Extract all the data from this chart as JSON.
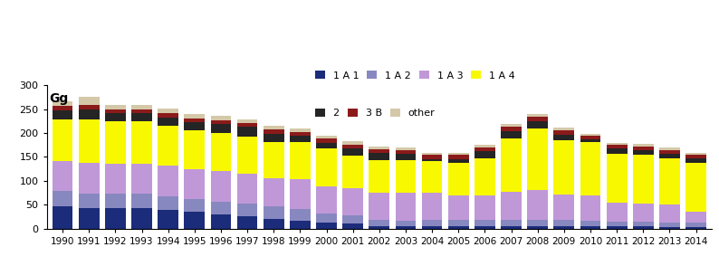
{
  "years": [
    1990,
    1991,
    1992,
    1993,
    1994,
    1995,
    1996,
    1997,
    1998,
    1999,
    2000,
    2001,
    2002,
    2003,
    2004,
    2005,
    2006,
    2007,
    2008,
    2009,
    2010,
    2011,
    2012,
    2013,
    2014
  ],
  "1A1": [
    46,
    44,
    44,
    44,
    40,
    35,
    29,
    26,
    21,
    17,
    12,
    11,
    5,
    5,
    5,
    5,
    5,
    5,
    5,
    5,
    5,
    5,
    5,
    4,
    4
  ],
  "1A2": [
    33,
    30,
    30,
    30,
    28,
    27,
    28,
    27,
    26,
    24,
    20,
    17,
    14,
    12,
    13,
    13,
    13,
    14,
    14,
    13,
    12,
    9,
    9,
    9,
    9
  ],
  "1A3": [
    62,
    64,
    62,
    62,
    64,
    63,
    63,
    62,
    58,
    62,
    57,
    57,
    57,
    58,
    58,
    52,
    52,
    58,
    62,
    54,
    52,
    41,
    39,
    37,
    22
  ],
  "1A4": [
    88,
    91,
    88,
    88,
    83,
    80,
    80,
    78,
    76,
    78,
    78,
    68,
    68,
    68,
    65,
    68,
    78,
    112,
    128,
    112,
    112,
    102,
    102,
    97,
    102
  ],
  "2": [
    18,
    21,
    17,
    17,
    18,
    17,
    18,
    20,
    18,
    13,
    13,
    14,
    14,
    13,
    5,
    8,
    14,
    14,
    15,
    12,
    5,
    10,
    10,
    10,
    10
  ],
  "3B": [
    10,
    9,
    9,
    9,
    9,
    9,
    8,
    8,
    8,
    8,
    8,
    8,
    8,
    8,
    8,
    8,
    8,
    10,
    10,
    10,
    8,
    8,
    7,
    7,
    7
  ],
  "other": [
    9,
    17,
    9,
    9,
    9,
    9,
    9,
    8,
    8,
    7,
    7,
    8,
    5,
    5,
    4,
    5,
    5,
    5,
    5,
    5,
    5,
    5,
    5,
    5,
    5
  ],
  "colors": {
    "1A1": "#1B2C7A",
    "1A2": "#8888C0",
    "1A3": "#C098D8",
    "1A4": "#F8F800",
    "2": "#252525",
    "3B": "#8B1A1A",
    "other": "#D4C8A8"
  },
  "ylabel": "Gg",
  "ylim": [
    0,
    300
  ],
  "yticks": [
    0,
    50,
    100,
    150,
    200,
    250,
    300
  ],
  "legend_labels": [
    "1 A 1",
    "1 A 2",
    "1 A 3",
    "1 A 4",
    "2",
    "3 B",
    "other"
  ],
  "legend_color_keys": [
    "1A1",
    "1A2",
    "1A3",
    "1A4",
    "2",
    "3B",
    "other"
  ]
}
